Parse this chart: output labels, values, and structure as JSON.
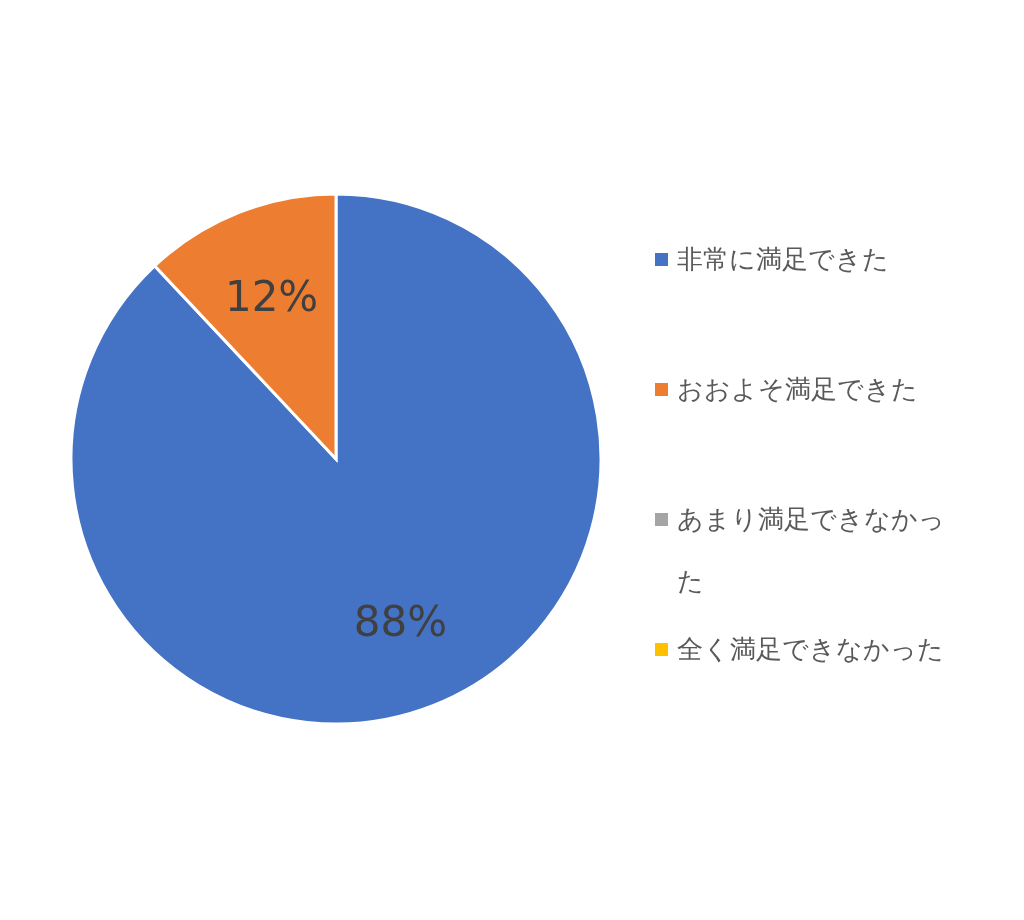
{
  "chart_data": {
    "type": "pie",
    "categories": [
      "非常に満足できた",
      "おおよそ満足できた",
      "あまり満足できなかった",
      "全く満足できなかった"
    ],
    "values": [
      88,
      12,
      0,
      0
    ],
    "colors": [
      "#4472c4",
      "#ed7d31",
      "#a5a5a5",
      "#ffc000"
    ],
    "value_labels": [
      "88%",
      "12%",
      null,
      null
    ],
    "legend": "right"
  }
}
